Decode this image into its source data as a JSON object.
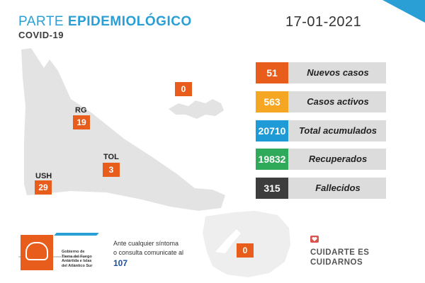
{
  "header": {
    "title_part1": "PARTE ",
    "title_part2": "EPIDEMIOLÓGICO",
    "subtitle": "COVID-19",
    "date": "17-01-2021"
  },
  "map": {
    "zones": [
      {
        "code": "RG",
        "value": "19"
      },
      {
        "code": "TOL",
        "value": "3"
      },
      {
        "code": "USH",
        "value": "29"
      }
    ],
    "islands_value": "0",
    "antarctica_value": "0"
  },
  "stats": [
    {
      "value": "51",
      "label": "Nuevos casos",
      "color": "#e85d1c"
    },
    {
      "value": "563",
      "label": "Casos activos",
      "color": "#f5a623"
    },
    {
      "value": "20710",
      "label": "Total acumulados",
      "color": "#1e9ad6"
    },
    {
      "value": "19832",
      "label": "Recuperados",
      "color": "#2faa5a"
    },
    {
      "value": "315",
      "label": "Fallecidos",
      "color": "#3d3d3d"
    }
  ],
  "footer": {
    "gov_line1": "Gobierno de",
    "gov_line2": "Tierra del Fuego",
    "gov_line3": "Antártida e Islas",
    "gov_line4": "del Atlántico Sur",
    "contact_line1": "Ante cualquier síntoma",
    "contact_line2": "o consulta comunicate al",
    "phone": "107",
    "slogan_line1": "CUIDARTE ES",
    "slogan_line2": "CUIDARNOS"
  },
  "colors": {
    "brand_blue": "#2a9fd6",
    "brand_orange": "#e85d1c",
    "map_gray": "#e3e3e3"
  },
  "icons": [
    "heart-shield-icon",
    "government-coat-of-arms"
  ]
}
